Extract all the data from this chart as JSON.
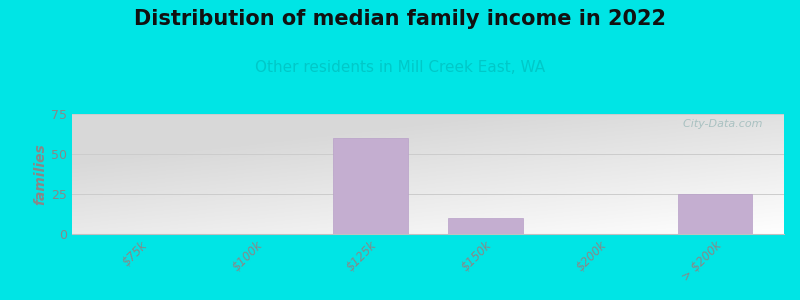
{
  "title": "Distribution of median family income in 2022",
  "subtitle": "Other residents in Mill Creek East, WA",
  "categories": [
    "$75k",
    "$100k",
    "$125k",
    "$150k",
    "$200k",
    "> $200k"
  ],
  "values": [
    0,
    0,
    60,
    10,
    0,
    25
  ],
  "bar_color": "#c4aed0",
  "bar_edge_color": "#b8a0c8",
  "ylabel": "families",
  "ylim": [
    0,
    75
  ],
  "yticks": [
    0,
    25,
    50,
    75
  ],
  "title_fontsize": 15,
  "subtitle_fontsize": 11,
  "subtitle_color": "#00c8c8",
  "tick_color": "#888888",
  "ylabel_fontsize": 10,
  "outer_bg": "#00e5e5",
  "plot_bg_topleft": "#ddf0dd",
  "plot_bg_topright": "#f8fff8",
  "plot_bg_bottomleft": "#c8e8c8",
  "plot_bg_bottomright": "#ffffff",
  "watermark_text": "  City-Data.com",
  "watermark_color": "#a0bcbc",
  "grid_color": "#cccccc",
  "axis_line_color": "#c0c0c0",
  "bar_width": 0.65
}
